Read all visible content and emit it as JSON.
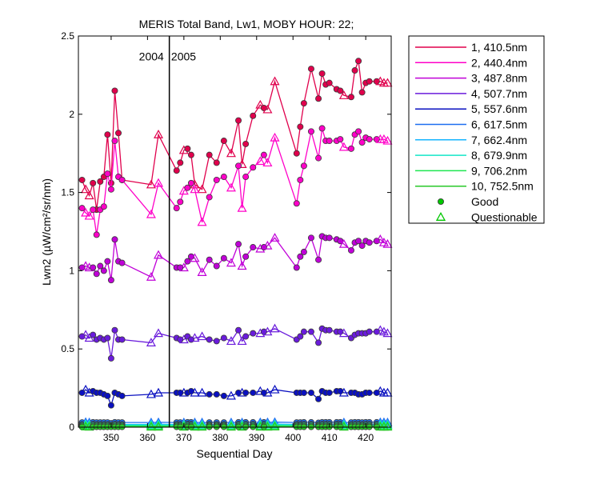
{
  "chart_data": {
    "type": "line",
    "title": "MERIS Total Band, Lw1, MOBY HOUR: 22;",
    "xlabel": "Sequential Day",
    "ylabel": "Lwn2 (µW/cm²/sr/nm)",
    "xlim": [
      341,
      427
    ],
    "ylim": [
      0,
      2.5
    ],
    "xticks": [
      350,
      360,
      370,
      380,
      390,
      400,
      410,
      420
    ],
    "yticks": [
      0,
      0.5,
      1,
      1.5,
      2,
      2.5
    ],
    "ytick_labels": [
      "0",
      "0.5",
      "1",
      "1.5",
      "2",
      "2.5"
    ],
    "grid": false,
    "legend_position": "outside-right",
    "annotations": [
      {
        "text": "2004",
        "x": 364.5,
        "y": 2.37,
        "anchor": "end"
      },
      {
        "text": "2005",
        "x": 366.5,
        "y": 2.37,
        "anchor": "start"
      }
    ],
    "vlines": [
      366
    ],
    "x": [
      342,
      343,
      344,
      345,
      346,
      347,
      348,
      349,
      350,
      351,
      352,
      353,
      361,
      363,
      368,
      369,
      370,
      371,
      372,
      373,
      375,
      377,
      379,
      381,
      383,
      385,
      386,
      387,
      389,
      391,
      392,
      393,
      395,
      401,
      402,
      403,
      405,
      407,
      408,
      409,
      410,
      412,
      413,
      414,
      416,
      417,
      418,
      419,
      420,
      421,
      423,
      424,
      425,
      426
    ],
    "quality": [
      "G",
      "Q",
      "Q",
      "G",
      "G",
      "G",
      "G",
      "G",
      "G",
      "G",
      "G",
      "G",
      "Q",
      "Q",
      "G",
      "G",
      "Q",
      "G",
      "G",
      "Q",
      "Q",
      "G",
      "G",
      "G",
      "Q",
      "G",
      "Q",
      "G",
      "G",
      "Q",
      "G",
      "Q",
      "Q",
      "G",
      "G",
      "G",
      "G",
      "G",
      "G",
      "G",
      "G",
      "G",
      "G",
      "Q",
      "G",
      "G",
      "G",
      "G",
      "G",
      "G",
      "G",
      "Q",
      "Q",
      "Q"
    ],
    "series": [
      {
        "name": "1, 410.5nm",
        "color": "#e0004c",
        "values": [
          1.58,
          1.52,
          1.48,
          1.56,
          1.39,
          1.57,
          1.6,
          1.87,
          1.56,
          2.15,
          1.88,
          1.58,
          1.55,
          1.87,
          1.64,
          1.69,
          1.77,
          1.78,
          1.74,
          1.55,
          1.52,
          1.74,
          1.69,
          1.83,
          1.75,
          1.96,
          1.68,
          1.81,
          1.99,
          2.06,
          2.04,
          2.03,
          2.21,
          1.75,
          1.92,
          2.07,
          2.29,
          2.1,
          2.26,
          2.19,
          2.2,
          2.16,
          2.15,
          2.12,
          2.11,
          2.28,
          2.34,
          2.14,
          2.2,
          2.21,
          2.21,
          2.21,
          2.2,
          2.2
        ]
      },
      {
        "name": "2, 440.4nm",
        "color": "#ff00c8",
        "values": [
          1.4,
          1.37,
          1.35,
          1.39,
          1.23,
          1.39,
          1.41,
          1.62,
          1.52,
          1.83,
          1.6,
          1.58,
          1.36,
          1.56,
          1.4,
          1.44,
          1.51,
          1.53,
          1.56,
          1.52,
          1.31,
          1.47,
          1.58,
          1.6,
          1.53,
          1.67,
          1.4,
          1.6,
          1.66,
          1.7,
          1.74,
          1.69,
          1.85,
          1.43,
          1.58,
          1.67,
          1.89,
          1.72,
          1.91,
          1.83,
          1.83,
          1.83,
          1.84,
          1.79,
          1.78,
          1.87,
          1.89,
          1.82,
          1.85,
          1.84,
          1.84,
          1.84,
          1.84,
          1.83
        ]
      },
      {
        "name": "3, 487.8nm",
        "color": "#c000d8",
        "values": [
          1.02,
          1.03,
          1.02,
          1.02,
          0.98,
          1.03,
          1.0,
          1.06,
          0.94,
          1.2,
          1.06,
          1.05,
          0.96,
          1.1,
          1.02,
          1.02,
          1.02,
          1.06,
          1.09,
          1.08,
          0.99,
          1.07,
          1.03,
          1.08,
          1.05,
          1.17,
          1.03,
          1.09,
          1.15,
          1.14,
          1.15,
          1.16,
          1.21,
          1.02,
          1.09,
          1.12,
          1.21,
          1.07,
          1.22,
          1.21,
          1.21,
          1.2,
          1.19,
          1.17,
          1.13,
          1.18,
          1.19,
          1.16,
          1.19,
          1.18,
          1.19,
          1.2,
          1.18,
          1.17
        ]
      },
      {
        "name": "4, 507.7nm",
        "color": "#6a1bdc",
        "values": [
          0.58,
          0.59,
          0.57,
          0.59,
          0.56,
          0.57,
          0.56,
          0.57,
          0.44,
          0.62,
          0.56,
          0.56,
          0.54,
          0.6,
          0.57,
          0.56,
          0.56,
          0.58,
          0.56,
          0.57,
          0.58,
          0.56,
          0.55,
          0.57,
          0.55,
          0.62,
          0.55,
          0.58,
          0.6,
          0.6,
          0.61,
          0.61,
          0.63,
          0.56,
          0.58,
          0.61,
          0.61,
          0.54,
          0.63,
          0.62,
          0.62,
          0.61,
          0.61,
          0.6,
          0.57,
          0.59,
          0.6,
          0.6,
          0.6,
          0.61,
          0.61,
          0.62,
          0.61,
          0.6
        ]
      },
      {
        "name": "5, 557.6nm",
        "color": "#0a10c0",
        "values": [
          0.22,
          0.24,
          0.22,
          0.23,
          0.22,
          0.22,
          0.21,
          0.2,
          0.14,
          0.22,
          0.21,
          0.2,
          0.21,
          0.22,
          0.22,
          0.22,
          0.22,
          0.22,
          0.23,
          0.22,
          0.22,
          0.21,
          0.21,
          0.2,
          0.2,
          0.22,
          0.22,
          0.22,
          0.22,
          0.23,
          0.22,
          0.22,
          0.24,
          0.22,
          0.22,
          0.22,
          0.22,
          0.18,
          0.23,
          0.22,
          0.22,
          0.23,
          0.23,
          0.22,
          0.22,
          0.22,
          0.21,
          0.21,
          0.22,
          0.22,
          0.22,
          0.23,
          0.22,
          0.22
        ]
      },
      {
        "name": "6, 617.5nm",
        "color": "#1e6ef0",
        "values": [
          0.03,
          0.032,
          0.03,
          0.031,
          0.03,
          0.03,
          0.03,
          0.03,
          0.025,
          0.031,
          0.03,
          0.03,
          0.03,
          0.031,
          0.03,
          0.03,
          0.03,
          0.031,
          0.031,
          0.03,
          0.03,
          0.03,
          0.03,
          0.03,
          0.03,
          0.031,
          0.03,
          0.031,
          0.031,
          0.031,
          0.031,
          0.031,
          0.032,
          0.03,
          0.03,
          0.031,
          0.031,
          0.028,
          0.031,
          0.031,
          0.031,
          0.031,
          0.031,
          0.03,
          0.03,
          0.031,
          0.031,
          0.03,
          0.031,
          0.031,
          0.031,
          0.031,
          0.031,
          0.03
        ]
      },
      {
        "name": "7, 662.4nm",
        "color": "#14b4ff",
        "values": [
          0.018,
          0.02,
          0.018,
          0.019,
          0.018,
          0.018,
          0.018,
          0.018,
          0.015,
          0.019,
          0.018,
          0.018,
          0.018,
          0.019,
          0.018,
          0.018,
          0.018,
          0.019,
          0.019,
          0.018,
          0.018,
          0.018,
          0.018,
          0.018,
          0.018,
          0.019,
          0.018,
          0.019,
          0.019,
          0.019,
          0.019,
          0.019,
          0.02,
          0.018,
          0.018,
          0.019,
          0.019,
          0.017,
          0.019,
          0.019,
          0.019,
          0.019,
          0.019,
          0.018,
          0.018,
          0.019,
          0.019,
          0.018,
          0.019,
          0.019,
          0.019,
          0.019,
          0.019,
          0.018
        ]
      },
      {
        "name": "8, 679.9nm",
        "color": "#14e6c8",
        "values": [
          0.014,
          0.016,
          0.014,
          0.015,
          0.014,
          0.014,
          0.014,
          0.014,
          0.012,
          0.015,
          0.014,
          0.014,
          0.014,
          0.015,
          0.014,
          0.014,
          0.014,
          0.015,
          0.015,
          0.014,
          0.014,
          0.014,
          0.014,
          0.014,
          0.014,
          0.015,
          0.014,
          0.015,
          0.015,
          0.015,
          0.015,
          0.015,
          0.016,
          0.014,
          0.014,
          0.015,
          0.015,
          0.013,
          0.015,
          0.015,
          0.015,
          0.015,
          0.015,
          0.014,
          0.014,
          0.015,
          0.015,
          0.014,
          0.015,
          0.015,
          0.015,
          0.015,
          0.015,
          0.014
        ]
      },
      {
        "name": "9, 706.2nm",
        "color": "#1ee650",
        "values": [
          0.008,
          0.009,
          0.008,
          0.008,
          0.008,
          0.008,
          0.008,
          0.008,
          0.007,
          0.008,
          0.008,
          0.008,
          0.008,
          0.008,
          0.008,
          0.008,
          0.008,
          0.008,
          0.008,
          0.008,
          0.008,
          0.008,
          0.008,
          0.008,
          0.008,
          0.008,
          0.008,
          0.008,
          0.008,
          0.008,
          0.008,
          0.008,
          0.009,
          0.008,
          0.008,
          0.008,
          0.008,
          0.007,
          0.008,
          0.008,
          0.008,
          0.008,
          0.008,
          0.008,
          0.008,
          0.008,
          0.008,
          0.008,
          0.008,
          0.008,
          0.008,
          0.008,
          0.008,
          0.008
        ]
      },
      {
        "name": "10, 752.5nm",
        "color": "#28c828",
        "values": [
          0.002,
          0.003,
          0.002,
          0.002,
          0.002,
          0.002,
          0.002,
          0.002,
          0.002,
          0.002,
          0.002,
          0.002,
          0.002,
          0.002,
          0.002,
          0.002,
          0.002,
          0.002,
          0.002,
          0.002,
          0.002,
          0.002,
          0.002,
          0.002,
          0.002,
          0.002,
          0.002,
          0.002,
          0.002,
          0.002,
          0.002,
          0.002,
          0.003,
          0.002,
          0.002,
          0.002,
          0.002,
          0.002,
          0.002,
          0.002,
          0.002,
          0.002,
          0.002,
          0.002,
          0.002,
          0.002,
          0.002,
          0.002,
          0.002,
          0.002,
          0.002,
          0.002,
          0.002,
          0.002
        ]
      }
    ],
    "legend_markers": [
      {
        "label": "Good",
        "marker": "circle",
        "color": "#00c800"
      },
      {
        "label": "Questionable",
        "marker": "triangle",
        "color": "#00c800"
      }
    ]
  }
}
